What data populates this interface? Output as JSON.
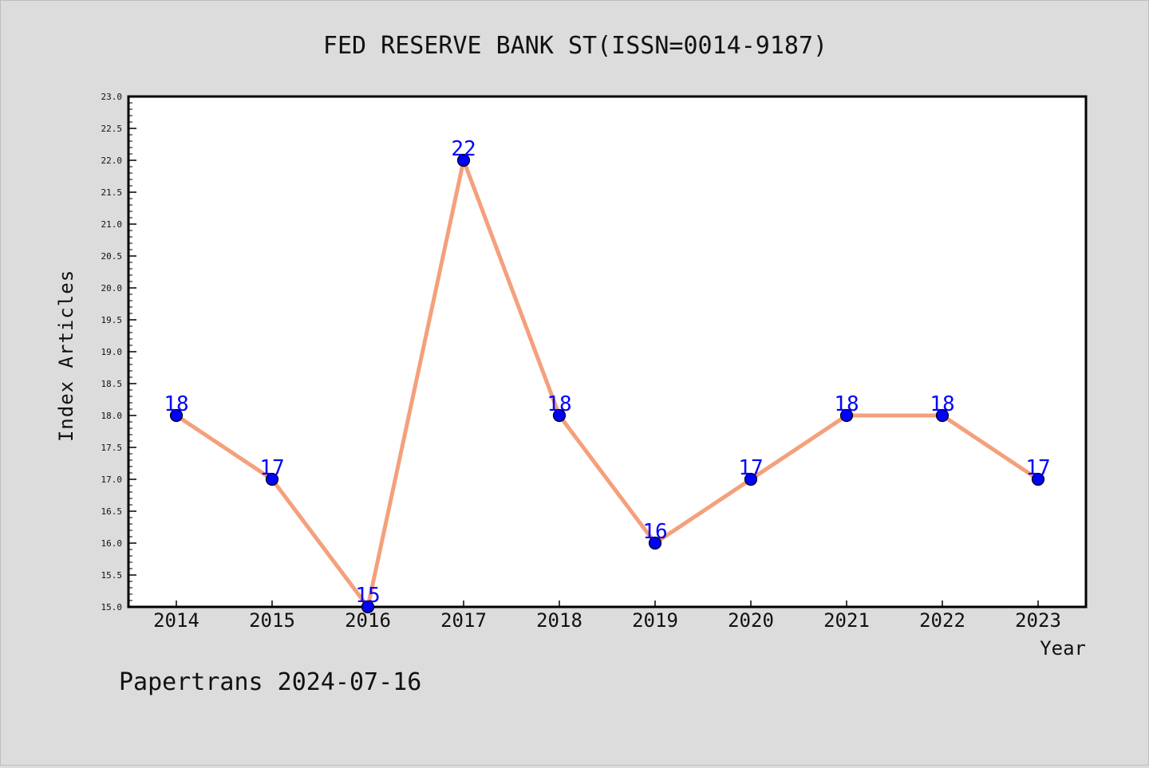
{
  "chart_data": {
    "type": "line",
    "title": "FED RESERVE BANK ST(ISSN=0014-9187)",
    "xlabel": "Year",
    "ylabel": "Index Articles",
    "categories": [
      "2014",
      "2015",
      "2016",
      "2017",
      "2018",
      "2019",
      "2020",
      "2021",
      "2022",
      "2023"
    ],
    "series": [
      {
        "values": [
          18,
          17,
          15,
          22,
          18,
          16,
          17,
          18,
          18,
          17
        ]
      }
    ],
    "ylim": [
      15.0,
      23.0
    ],
    "yticks": [
      "15.0",
      "15.5",
      "16.0",
      "16.5",
      "17.0",
      "17.5",
      "18.0",
      "18.5",
      "19.0",
      "19.5",
      "20.0",
      "20.5",
      "21.0",
      "21.5",
      "22.0",
      "22.5",
      "23.0"
    ],
    "grid": false,
    "data_labels": true,
    "colors": {
      "line": "#f4a07c",
      "marker": "#0000ff",
      "label": "#0000ff",
      "background": "#dcdcdc",
      "plot_area": "#ffffff"
    }
  },
  "footer": "Papertrans 2024-07-16"
}
